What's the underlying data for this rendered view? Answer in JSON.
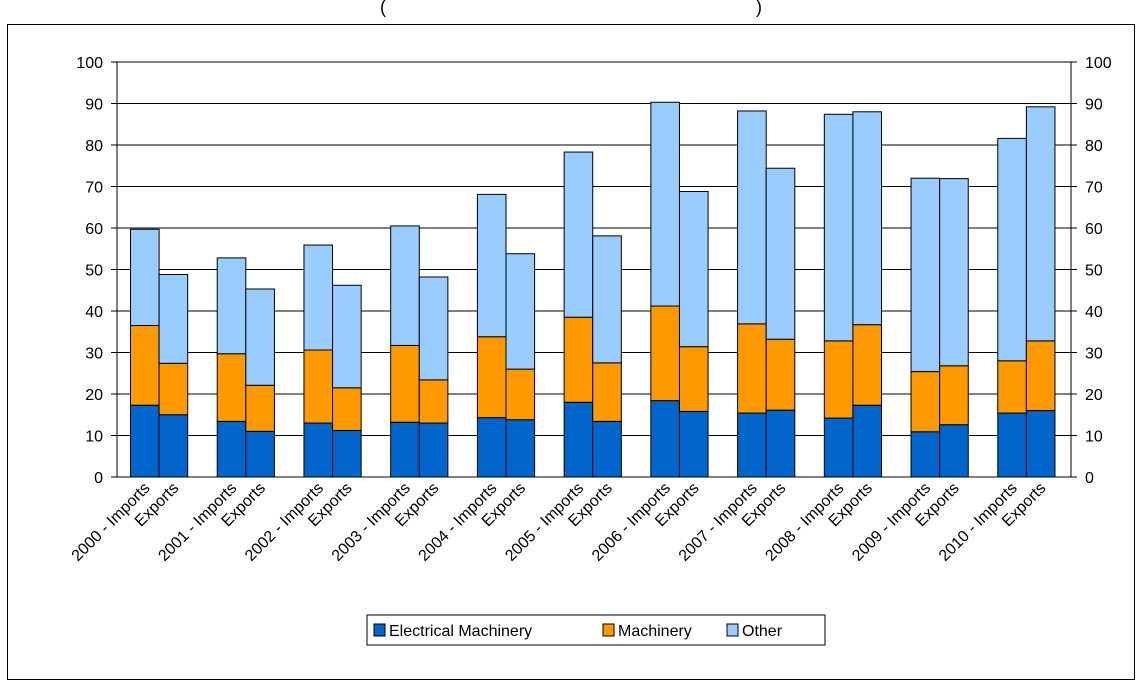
{
  "chart_data": {
    "type": "bar",
    "stacked": true,
    "title": "(",
    "title_right": ")",
    "categories": [
      "2000 - Imports",
      "Exports",
      "2001 - Imports",
      "Exports",
      "2002 - Imports",
      "Exports",
      "2003 - Imports",
      "Exports",
      "2004 - Imports",
      "Exports",
      "2005 - Imports",
      "Exports",
      "2006 - Imports",
      "Exports",
      "2007 - Imports",
      "Exports",
      "2008 - Imports",
      "Exports",
      "2009 - Imports",
      "Exports",
      "2010 - Imports",
      "Exports"
    ],
    "series": [
      {
        "name": "Electrical Machinery",
        "color": "#0066CC",
        "values": [
          17.3,
          15.0,
          13.4,
          11.0,
          13.0,
          11.2,
          13.2,
          13.0,
          14.3,
          13.8,
          18.0,
          13.4,
          18.4,
          15.8,
          15.4,
          16.1,
          14.2,
          17.3,
          10.9,
          12.6,
          15.4,
          16.0
        ]
      },
      {
        "name": "Machinery",
        "color": "#FF9900",
        "values": [
          19.2,
          12.4,
          16.3,
          11.1,
          17.6,
          10.3,
          18.5,
          10.4,
          19.5,
          12.2,
          20.5,
          14.1,
          22.8,
          15.6,
          21.5,
          17.1,
          18.6,
          19.4,
          14.5,
          14.2,
          12.6,
          16.8
        ]
      },
      {
        "name": "Other",
        "color": "#99CCFF",
        "values": [
          23.2,
          21.4,
          23.1,
          23.2,
          25.3,
          24.7,
          28.8,
          24.8,
          34.3,
          27.8,
          39.8,
          30.6,
          49.1,
          37.4,
          51.3,
          41.2,
          54.6,
          51.3,
          46.6,
          45.1,
          53.6,
          56.4
        ]
      }
    ],
    "y_left": {
      "min": 0,
      "max": 100,
      "step": 10
    },
    "y_right": {
      "min": 0,
      "max": 100,
      "step": 10
    },
    "grid": true,
    "legend_position": "bottom"
  }
}
